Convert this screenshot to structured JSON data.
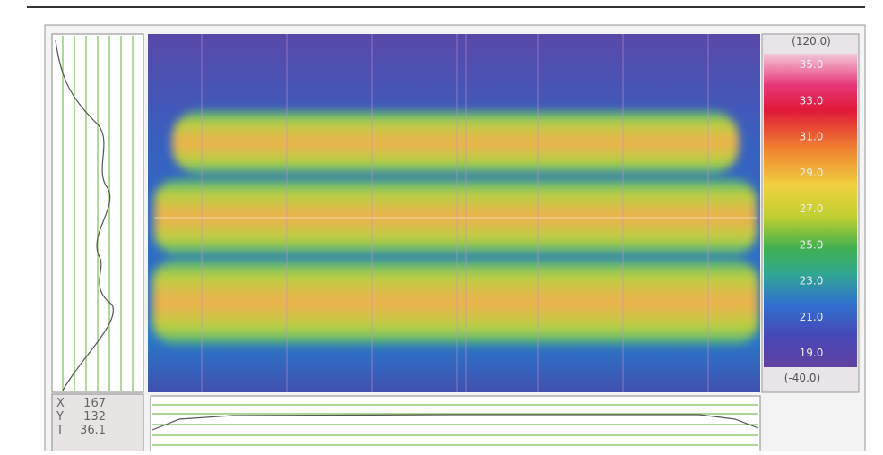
{
  "scale": {
    "max": "(120.0)",
    "labels": [
      "35.0",
      "33.0",
      "31.0",
      "29.0",
      "27.0",
      "25.0",
      "23.0",
      "21.0",
      "19.0"
    ],
    "min": "(-40.0)"
  },
  "readout": [
    {
      "label": "X",
      "value": "167"
    },
    {
      "label": "Y",
      "value": "132"
    },
    {
      "label": "T",
      "value": "36.1"
    }
  ]
}
